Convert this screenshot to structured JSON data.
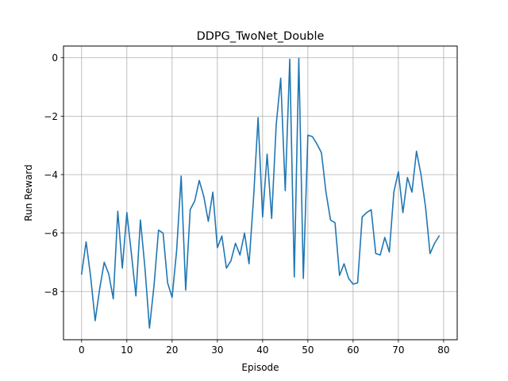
{
  "chart_data": {
    "type": "line",
    "title": "DDPG_TwoNet_Double",
    "xlabel": "Episode",
    "ylabel": "Run Reward",
    "xlim": [
      -4,
      83
    ],
    "ylim": [
      -9.65,
      0.4
    ],
    "xticks": [
      0,
      10,
      20,
      30,
      40,
      50,
      60,
      70,
      80
    ],
    "yticks": [
      0,
      -2,
      -4,
      -6,
      -8
    ],
    "ytick_labels": [
      "0",
      "−2",
      "−4",
      "−6",
      "−8"
    ],
    "grid": true,
    "series": [
      {
        "color": "#1f77b4",
        "x": [
          0,
          1,
          2,
          3,
          4,
          5,
          6,
          7,
          8,
          9,
          10,
          11,
          12,
          13,
          14,
          15,
          16,
          17,
          18,
          19,
          20,
          21,
          22,
          23,
          24,
          25,
          26,
          27,
          28,
          29,
          30,
          31,
          32,
          33,
          34,
          35,
          36,
          37,
          38,
          39,
          40,
          41,
          42,
          43,
          44,
          45,
          46,
          47,
          48,
          49,
          50,
          51,
          52,
          53,
          54,
          55,
          56,
          57,
          58,
          59,
          60,
          61,
          62,
          63,
          64,
          65,
          66,
          67,
          68,
          69,
          70,
          71,
          72,
          73,
          74,
          75,
          76,
          77,
          78,
          79
        ],
        "y": [
          -7.4,
          -6.3,
          -7.5,
          -9.0,
          -7.9,
          -7.0,
          -7.4,
          -8.25,
          -5.25,
          -7.2,
          -5.3,
          -6.7,
          -8.15,
          -5.55,
          -7.2,
          -9.25,
          -7.8,
          -5.9,
          -6.0,
          -7.7,
          -8.2,
          -6.6,
          -4.05,
          -7.95,
          -5.2,
          -4.9,
          -4.2,
          -4.75,
          -5.6,
          -4.6,
          -6.5,
          -6.1,
          -7.2,
          -6.95,
          -6.35,
          -6.75,
          -6.0,
          -7.05,
          -4.8,
          -2.05,
          -5.45,
          -3.3,
          -5.5,
          -2.3,
          -0.7,
          -4.55,
          -0.05,
          -7.5,
          -0.02,
          -7.55,
          -2.65,
          -2.7,
          -2.95,
          -3.25,
          -4.6,
          -5.55,
          -5.65,
          -7.45,
          -7.05,
          -7.55,
          -7.75,
          -7.7,
          -5.45,
          -5.3,
          -5.2,
          -6.7,
          -6.75,
          -6.15,
          -6.65,
          -4.6,
          -3.9,
          -5.3,
          -4.1,
          -4.6,
          -3.2,
          -4.0,
          -5.1,
          -6.7,
          -6.35,
          -6.1
        ]
      }
    ]
  }
}
